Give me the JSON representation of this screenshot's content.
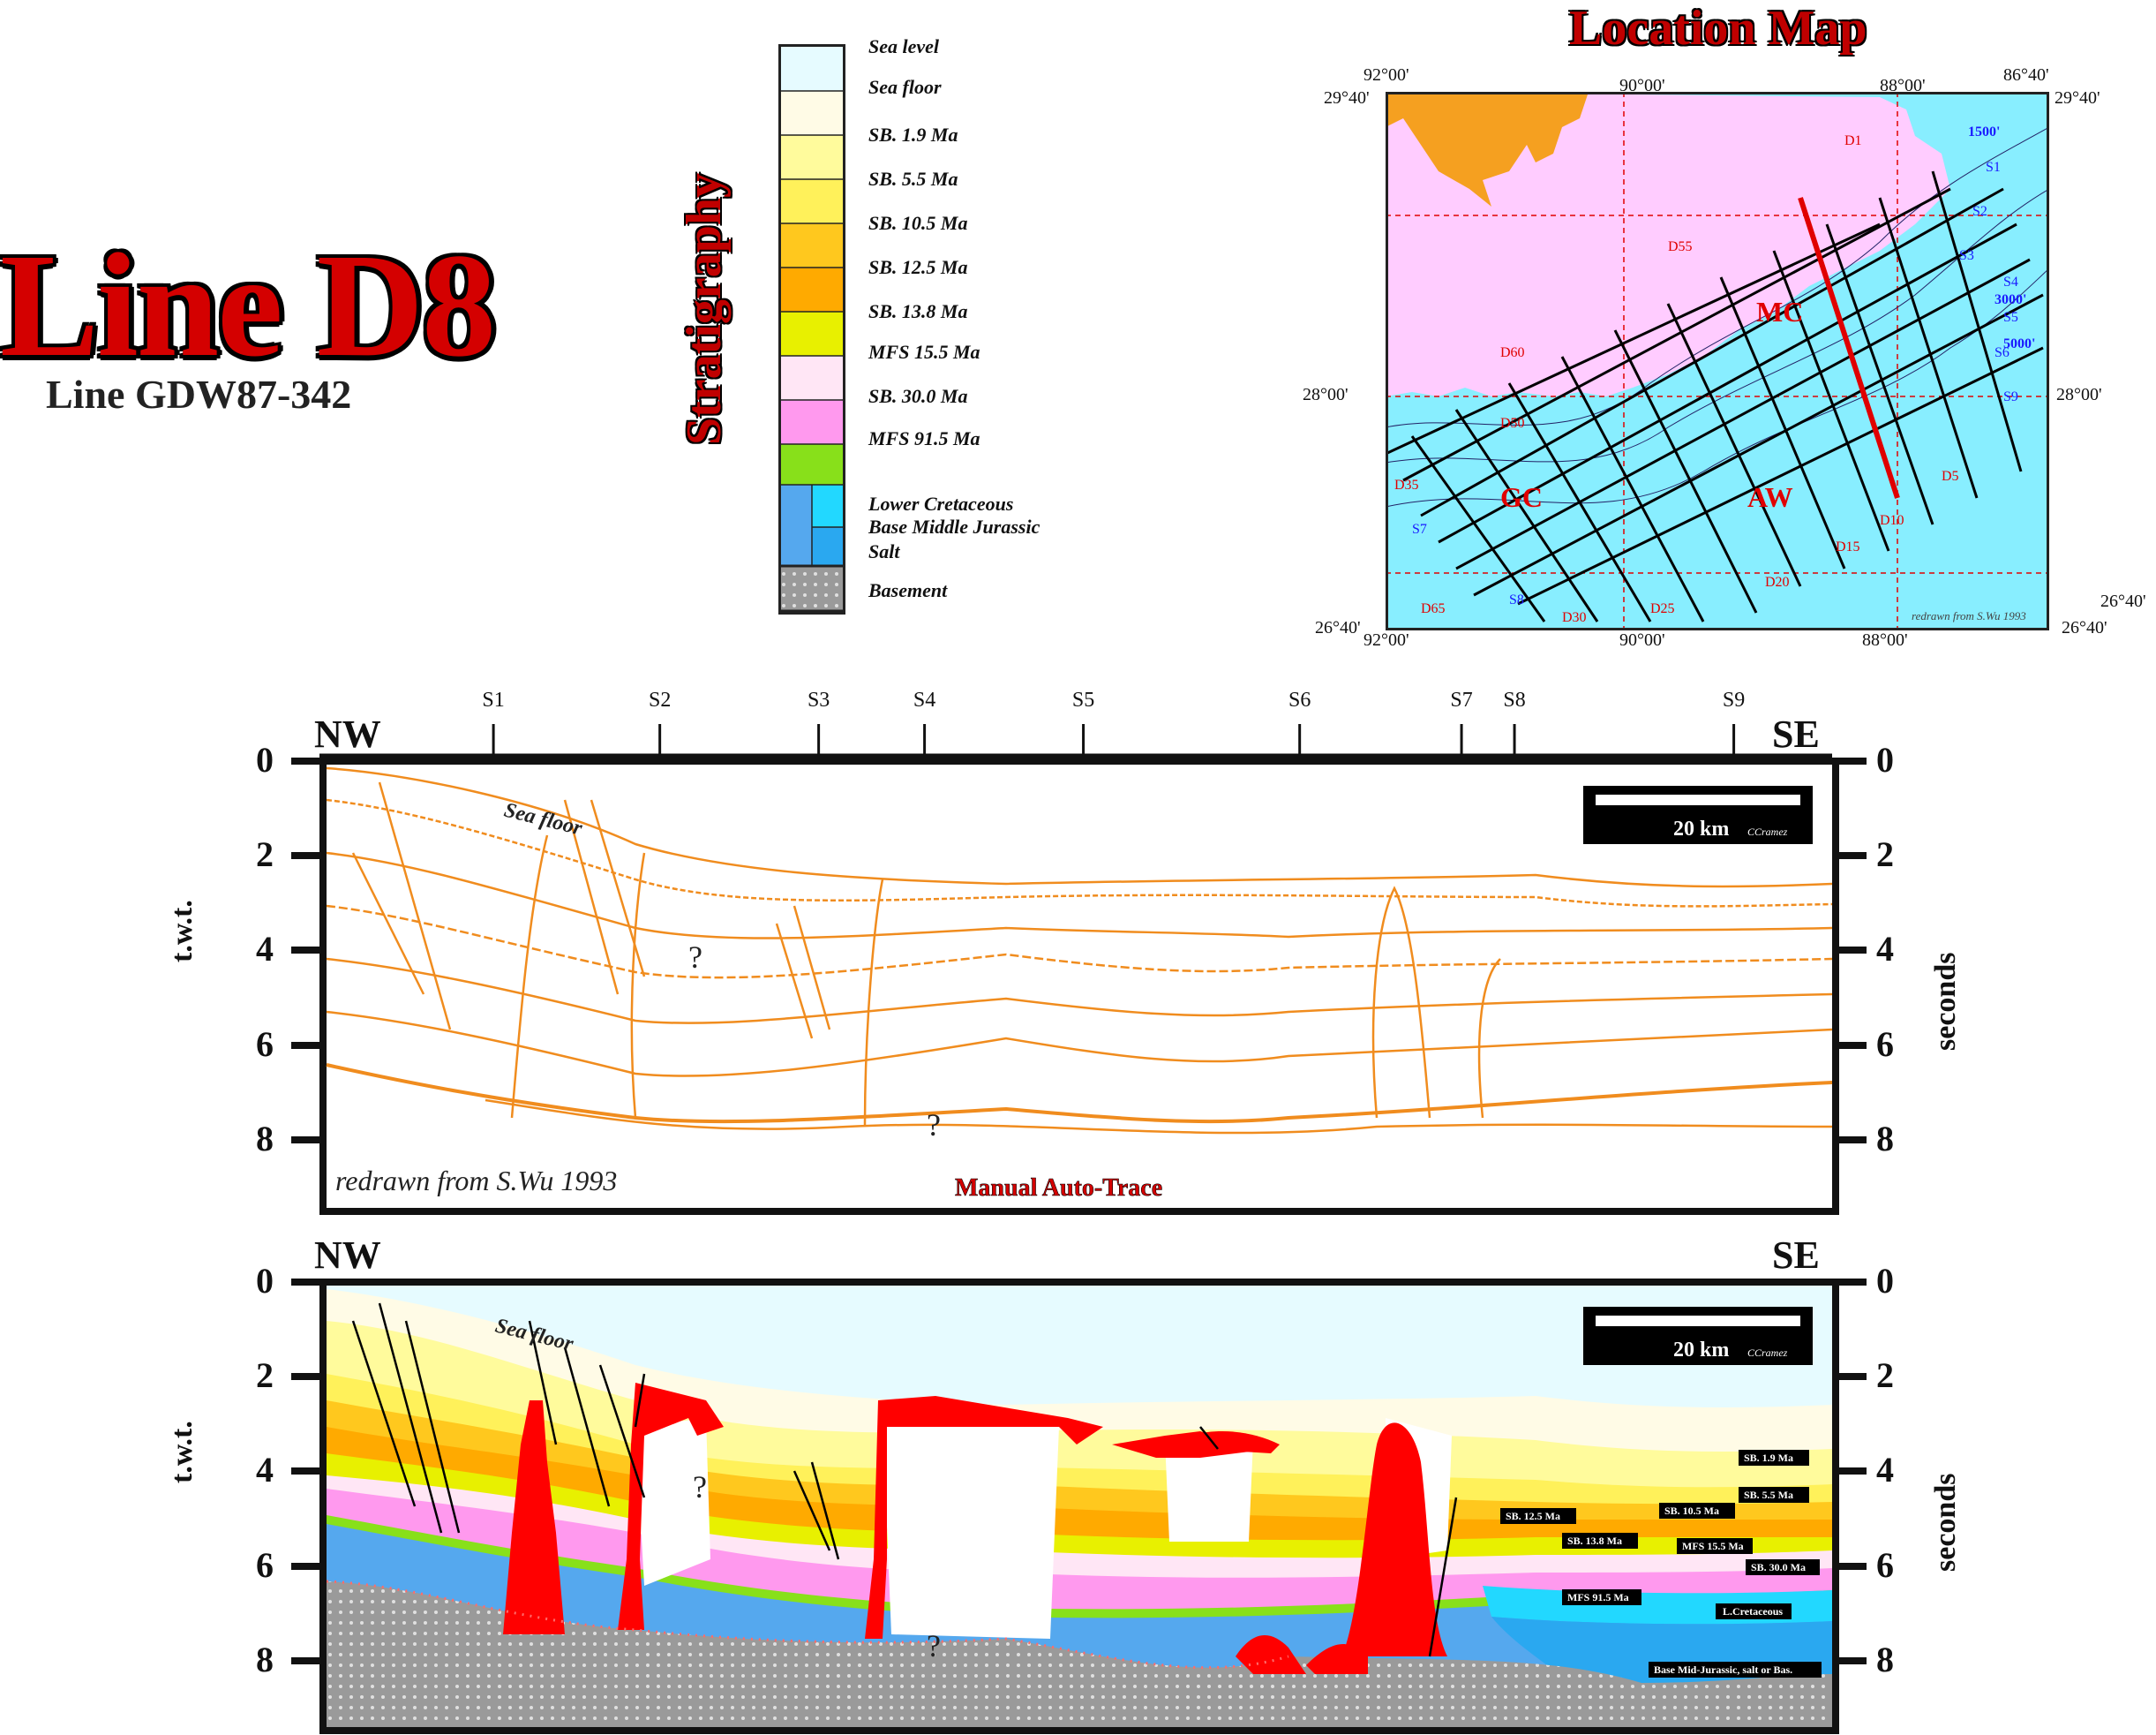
{
  "title": "Line D8",
  "subtitle": "Line GDW87-342",
  "stratigraphy": {
    "title": "Stratigraphy",
    "units": [
      {
        "label": "Sea level",
        "color": "#e6fbff"
      },
      {
        "label": "Sea floor",
        "color": "#fffbe6"
      },
      {
        "label": "SB. 1.9 Ma",
        "color": "#fffb9c"
      },
      {
        "label": "SB. 5.5 Ma",
        "color": "#fff15a"
      },
      {
        "label": "SB. 10.5 Ma",
        "color": "#ffc81e"
      },
      {
        "label": "SB. 12.5 Ma",
        "color": "#ffaa00"
      },
      {
        "label": "SB. 13.8 Ma",
        "color": "#e8f000"
      },
      {
        "label": "MFS 15.5 Ma",
        "color": "#ffe6f5"
      },
      {
        "label": "SB. 30.0 Ma",
        "color": "#ff99ee"
      },
      {
        "label": "MFS 91.5 Ma",
        "color": "#88e01a"
      },
      {
        "label": "Lower Cretaceous",
        "color": "#22d8ff"
      },
      {
        "label": "Base Middle Jurassic",
        "color": "#55a8ee"
      },
      {
        "label": "Salt",
        "color": "#ff0000"
      },
      {
        "label": "Basement",
        "color": "#aaaaaa"
      }
    ]
  },
  "location_map": {
    "title": "Location Map",
    "coords": {
      "top": [
        "92°00'",
        "90°00'",
        "88°00'",
        "86°40'"
      ],
      "left": [
        "29°40'",
        "28°00'",
        "26°40'"
      ],
      "right": [
        "29°40'",
        "28°00'",
        "26°40'"
      ],
      "bottom": [
        "92°00'",
        "90°00'",
        "88°00'",
        "26°40'"
      ]
    },
    "area_labels": [
      "MC",
      "GC",
      "AW"
    ],
    "line_labels": [
      "D1",
      "D5",
      "D10",
      "D15",
      "D20",
      "D25",
      "D30",
      "D35",
      "D50",
      "D55",
      "D60",
      "D65"
    ],
    "strike_labels": [
      "S1",
      "S2",
      "S3",
      "S4",
      "S5",
      "S6",
      "S7",
      "S8",
      "S9"
    ],
    "contour_labels": [
      "1500'",
      "3000'",
      "5000'"
    ],
    "credit": "redrawn from S.Wu 1993",
    "colors": {
      "land": "#ffccff",
      "sea": "#88eeff",
      "bay": "#f5a020",
      "selected_line": "#e00000"
    }
  },
  "profile_axis": {
    "strike_ticks": [
      {
        "label": "S1",
        "pos": 0.115
      },
      {
        "label": "S2",
        "pos": 0.225
      },
      {
        "label": "S3",
        "pos": 0.33
      },
      {
        "label": "S4",
        "pos": 0.4
      },
      {
        "label": "S5",
        "pos": 0.505
      },
      {
        "label": "S6",
        "pos": 0.648
      },
      {
        "label": "S7",
        "pos": 0.755
      },
      {
        "label": "S8",
        "pos": 0.79
      },
      {
        "label": "S9",
        "pos": 0.935
      }
    ],
    "left_dir": "NW",
    "right_dir": "SE",
    "y_ticks": [
      "0",
      "2",
      "4",
      "6",
      "8"
    ],
    "ylabel_left": "t.w.t.",
    "ylabel_right": "seconds"
  },
  "seismic_panel": {
    "sea_floor_label": "Sea floor",
    "scale_label": "20 km",
    "scale_credit": "CCramez",
    "credit": "redrawn from S.Wu 1993",
    "method_label": "Manual Auto-Trace",
    "question_marks": [
      "?",
      "?"
    ]
  },
  "interpreted_panel": {
    "sea_floor_label": "Sea floor",
    "scale_label": "20 km",
    "scale_credit": "CCramez",
    "question_marks": [
      "?",
      "?"
    ],
    "horizon_tags": [
      "SB. 1.9 Ma",
      "SB. 5.5 Ma",
      "SB. 12.5 Ma",
      "SB. 10.5 Ma",
      "SB. 13.8 Ma",
      "MFS 15.5 Ma",
      "SB. 30.0 Ma",
      "MFS 91.5 Ma",
      "L.Cretaceous",
      "Base Mid-Jurassic, salt or Bas."
    ]
  }
}
